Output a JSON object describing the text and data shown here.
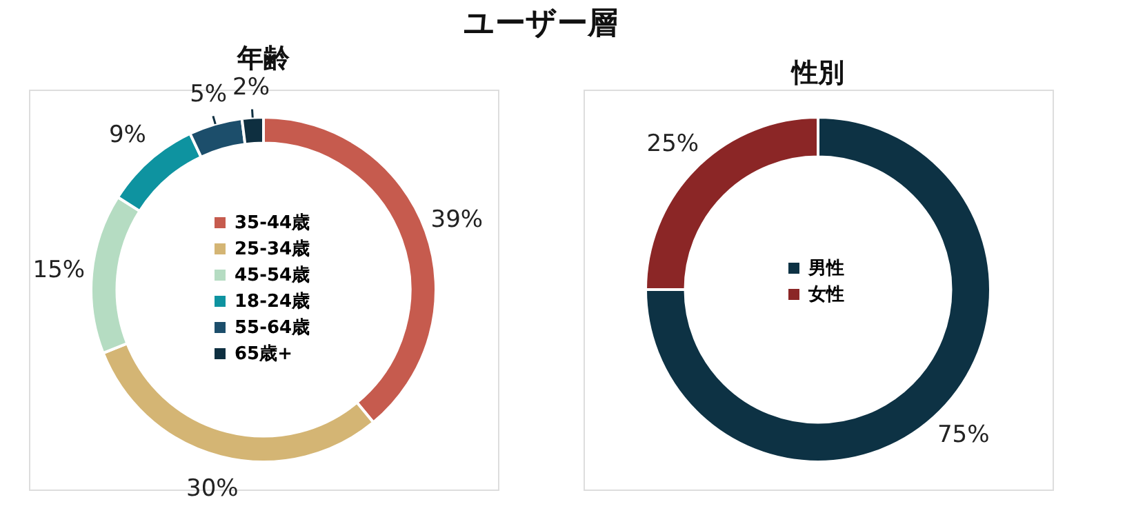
{
  "chart_data": [
    {
      "type": "donut",
      "title": "年齢",
      "annotations": [
        "ユーザー層"
      ],
      "legend": "center",
      "categories": [
        "35-44歳",
        "25-34歳",
        "45-54歳",
        "18-24歳",
        "55-64歳",
        "65歳+"
      ],
      "values": [
        39,
        30,
        15,
        9,
        5,
        2
      ],
      "value_labels": [
        "39%",
        "30%",
        "15%",
        "9%",
        "5%",
        "2%"
      ],
      "colors": [
        "#c65b4e",
        "#d4b574",
        "#b5dcc2",
        "#0e93a0",
        "#1c4e6b",
        "#0e2f40"
      ]
    },
    {
      "type": "donut",
      "title": "性別",
      "legend": "center",
      "categories": [
        "男性",
        "女性"
      ],
      "values": [
        75,
        25
      ],
      "value_labels": [
        "75%",
        "25%"
      ],
      "colors": [
        "#0d3244",
        "#8b2626"
      ]
    }
  ]
}
